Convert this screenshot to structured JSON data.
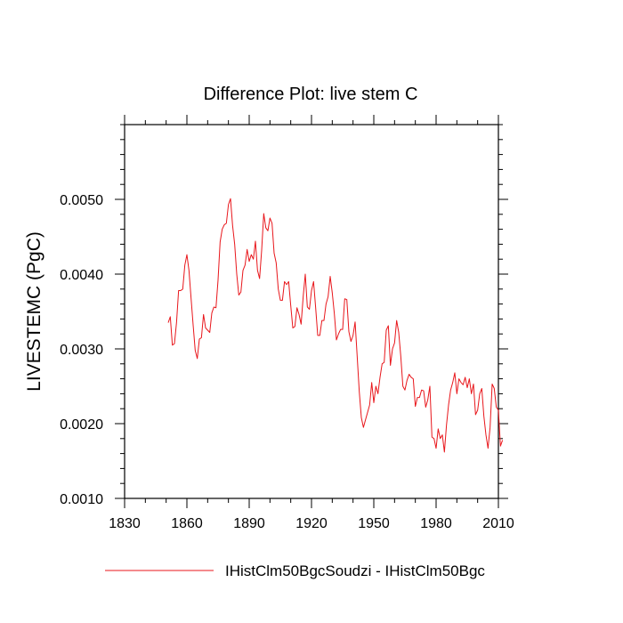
{
  "chart_data": {
    "type": "line",
    "title": "Difference Plot: live stem C",
    "xlabel": "",
    "ylabel": "LIVESTEMC  (PgC)",
    "xlim": [
      1830,
      2010
    ],
    "ylim": [
      0.001,
      0.006
    ],
    "x_ticks": [
      1830,
      1860,
      1890,
      1920,
      1950,
      1980,
      2010
    ],
    "y_ticks": [
      0.001,
      0.002,
      0.003,
      0.004,
      0.005
    ],
    "y_tick_labels": [
      "0.0010",
      "0.0020",
      "0.0030",
      "0.0040",
      "0.0050"
    ],
    "grid": false,
    "legend_position": "bottom",
    "series": [
      {
        "name": "IHistClm50BgcSoudzi - IHistClm50Bgc",
        "color": "#e8161b",
        "x_start": 1851,
        "x_step": 1,
        "values": [
          0.00335,
          0.00343,
          0.00305,
          0.00307,
          0.00335,
          0.00378,
          0.00378,
          0.0038,
          0.00412,
          0.00426,
          0.00405,
          0.00368,
          0.00332,
          0.00298,
          0.00287,
          0.00313,
          0.00315,
          0.00346,
          0.00328,
          0.00325,
          0.00322,
          0.00348,
          0.00356,
          0.00355,
          0.00392,
          0.00443,
          0.0046,
          0.00466,
          0.00468,
          0.00493,
          0.00501,
          0.00465,
          0.0044,
          0.004,
          0.00372,
          0.00376,
          0.00405,
          0.00412,
          0.00433,
          0.00417,
          0.00426,
          0.0042,
          0.00444,
          0.00405,
          0.00394,
          0.00432,
          0.00481,
          0.00462,
          0.00458,
          0.00475,
          0.00468,
          0.00428,
          0.00415,
          0.0038,
          0.00365,
          0.00365,
          0.0039,
          0.00386,
          0.0039,
          0.00358,
          0.00328,
          0.0033,
          0.00355,
          0.00346,
          0.00333,
          0.0037,
          0.004,
          0.00356,
          0.00353,
          0.00378,
          0.0039,
          0.00355,
          0.00318,
          0.00318,
          0.00338,
          0.00338,
          0.0036,
          0.0037,
          0.00397,
          0.00375,
          0.00347,
          0.00312,
          0.0032,
          0.00326,
          0.00326,
          0.00367,
          0.00366,
          0.00323,
          0.0031,
          0.00318,
          0.00336,
          0.0029,
          0.00243,
          0.00208,
          0.00195,
          0.00205,
          0.00215,
          0.00225,
          0.00255,
          0.00228,
          0.0025,
          0.0024,
          0.00262,
          0.0028,
          0.00282,
          0.00325,
          0.00331,
          0.00278,
          0.003,
          0.00308,
          0.00338,
          0.00322,
          0.0029,
          0.0025,
          0.00245,
          0.00258,
          0.00266,
          0.00262,
          0.0026,
          0.00223,
          0.00235,
          0.00235,
          0.00245,
          0.00244,
          0.00222,
          0.00232,
          0.0025,
          0.00182,
          0.0018,
          0.00167,
          0.00193,
          0.0018,
          0.00185,
          0.00162,
          0.00198,
          0.00225,
          0.00245,
          0.00255,
          0.00268,
          0.0024,
          0.0026,
          0.00255,
          0.00252,
          0.00262,
          0.00248,
          0.0026,
          0.0024,
          0.00253,
          0.00212,
          0.00218,
          0.0024,
          0.00247,
          0.0021,
          0.00185,
          0.00167,
          0.00195,
          0.00253,
          0.00247,
          0.00222,
          0.00218,
          0.0017,
          0.00178
        ]
      }
    ]
  }
}
